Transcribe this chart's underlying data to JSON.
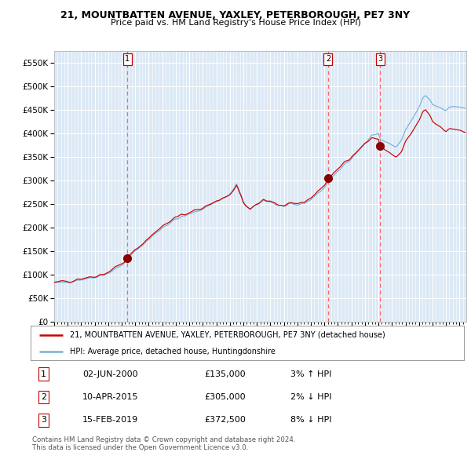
{
  "title1": "21, MOUNTBATTEN AVENUE, YAXLEY, PETERBOROUGH, PE7 3NY",
  "title2": "Price paid vs. HM Land Registry's House Price Index (HPI)",
  "ylabel_ticks": [
    "£0",
    "£50K",
    "£100K",
    "£150K",
    "£200K",
    "£250K",
    "£300K",
    "£350K",
    "£400K",
    "£450K",
    "£500K",
    "£550K"
  ],
  "ytick_vals": [
    0,
    50000,
    100000,
    150000,
    200000,
    250000,
    300000,
    350000,
    400000,
    450000,
    500000,
    550000
  ],
  "ylim": [
    0,
    575000
  ],
  "xlim_start": 1995.0,
  "xlim_end": 2025.5,
  "background_color": "#dce9f5",
  "grid_color": "#ffffff",
  "red_line_color": "#cc0000",
  "blue_line_color": "#7ab0d8",
  "dashed_line_color": "#ff6666",
  "marker_color": "#880000",
  "purchase_dates": [
    2000.42,
    2015.27,
    2019.12
  ],
  "purchase_prices": [
    135000,
    305000,
    372500
  ],
  "purchase_labels": [
    "1",
    "2",
    "3"
  ],
  "legend_red": "21, MOUNTBATTEN AVENUE, YAXLEY, PETERBOROUGH, PE7 3NY (detached house)",
  "legend_blue": "HPI: Average price, detached house, Huntingdonshire",
  "table_data": [
    [
      "1",
      "02-JUN-2000",
      "£135,000",
      "3% ↑ HPI"
    ],
    [
      "2",
      "10-APR-2015",
      "£305,000",
      "2% ↓ HPI"
    ],
    [
      "3",
      "15-FEB-2019",
      "£372,500",
      "8% ↓ HPI"
    ]
  ],
  "footer": "Contains HM Land Registry data © Crown copyright and database right 2024.\nThis data is licensed under the Open Government Licence v3.0."
}
